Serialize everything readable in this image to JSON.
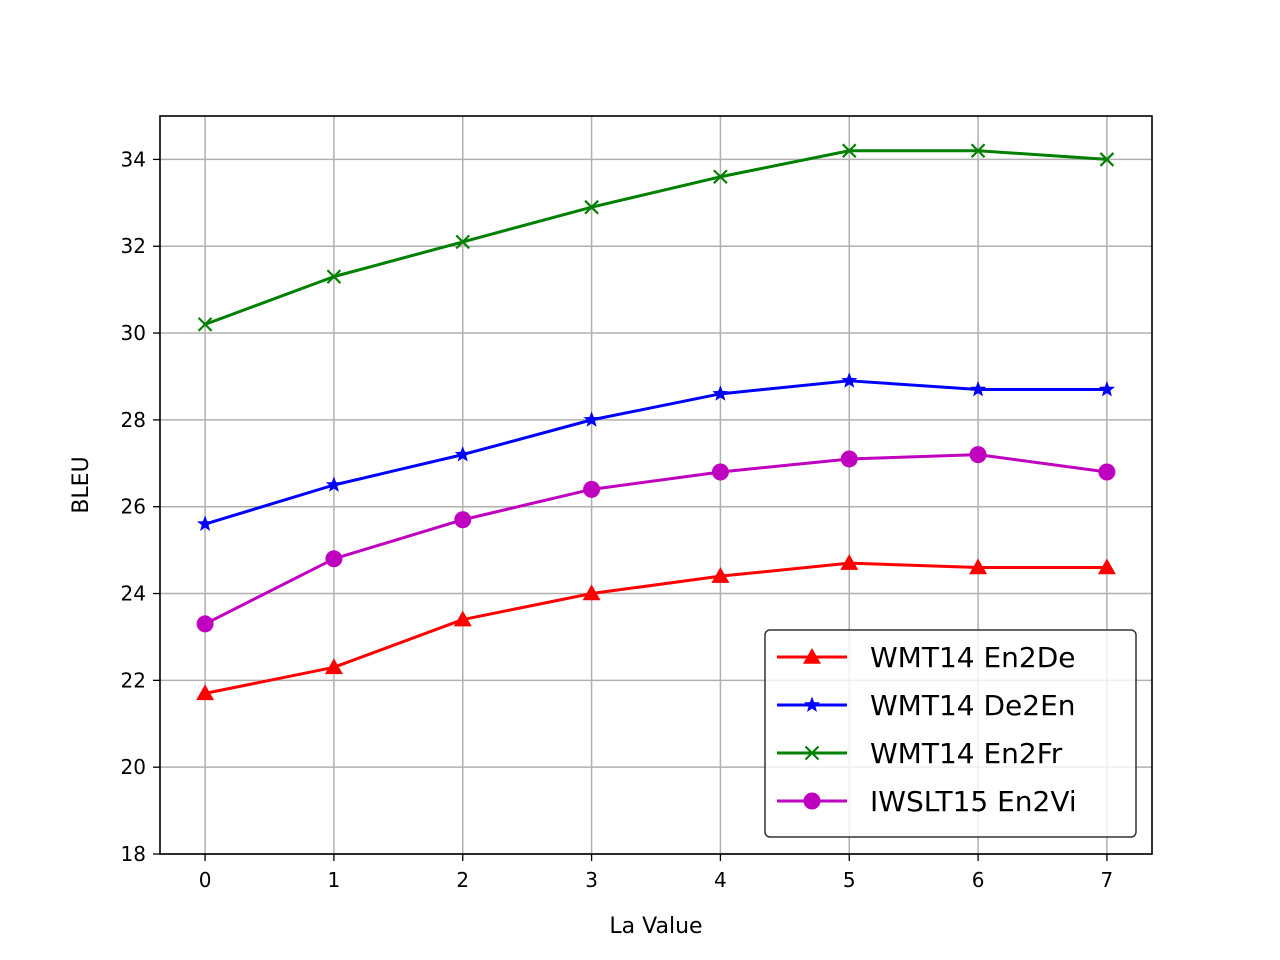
{
  "chart_data": {
    "type": "line",
    "title": "",
    "xlabel": "La Value",
    "ylabel": "BLEU",
    "x": [
      0,
      1,
      2,
      3,
      4,
      5,
      6,
      7
    ],
    "xlim": [
      -0.35,
      7.35
    ],
    "ylim": [
      18,
      35
    ],
    "xticks": [
      0,
      1,
      2,
      3,
      4,
      5,
      6,
      7
    ],
    "yticks": [
      18,
      20,
      22,
      24,
      26,
      28,
      30,
      32,
      34
    ],
    "grid": true,
    "legend_position": "lower-right",
    "series": [
      {
        "name": "WMT14 En2De",
        "color": "#ff0000",
        "marker": "triangle-up",
        "values": [
          21.7,
          22.3,
          23.4,
          24.0,
          24.4,
          24.7,
          24.6,
          24.6
        ]
      },
      {
        "name": "WMT14 De2En",
        "color": "#0000ff",
        "marker": "star",
        "values": [
          25.6,
          26.5,
          27.2,
          28.0,
          28.6,
          28.9,
          28.7,
          28.7
        ]
      },
      {
        "name": "WMT14 En2Fr",
        "color": "#008000",
        "marker": "x",
        "values": [
          30.2,
          31.3,
          32.1,
          32.9,
          33.6,
          34.2,
          34.2,
          34.0
        ]
      },
      {
        "name": "IWSLT15 En2Vi",
        "color": "#bf00bf",
        "marker": "circle",
        "values": [
          23.3,
          24.8,
          25.7,
          26.4,
          26.8,
          27.1,
          27.2,
          26.8
        ]
      }
    ]
  }
}
